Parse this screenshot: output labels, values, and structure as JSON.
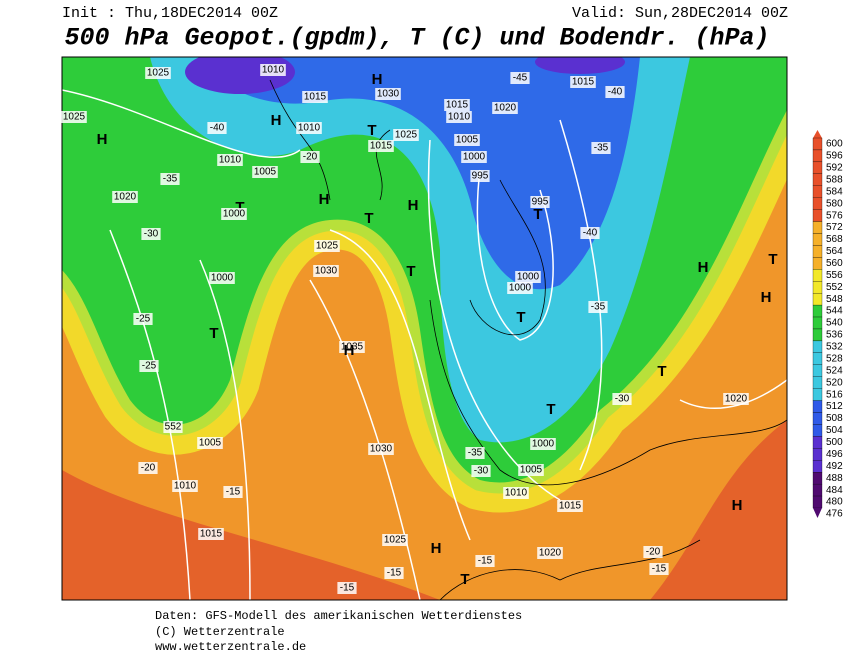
{
  "header": {
    "init": "Init : Thu,18DEC2014 00Z",
    "valid": "Valid: Sun,28DEC2014 00Z",
    "title": "500 hPa Geopot.(gpdm), T (C) und Bodendr. (hPa)"
  },
  "legend": {
    "labels": [
      600,
      596,
      592,
      588,
      584,
      580,
      576,
      572,
      568,
      564,
      560,
      556,
      552,
      548,
      544,
      540,
      536,
      532,
      528,
      524,
      520,
      516,
      512,
      508,
      504,
      500,
      496,
      492,
      488,
      484,
      480,
      476
    ]
  },
  "map": {
    "labels": [
      "1025",
      "1010",
      "1015",
      "1030",
      "H",
      "1015",
      "1010",
      "1020",
      "1015",
      "-45",
      "-40",
      "1025",
      "H",
      "-40",
      "H",
      "1010",
      "T",
      "1015",
      "1025",
      "1005",
      "1000",
      "-35",
      "1010",
      "1005",
      "-35",
      "-20",
      "995",
      "1020",
      "T",
      "1000",
      "H",
      "T",
      "H",
      "995",
      "T",
      "-30",
      "1025",
      "1030",
      "-40",
      "1000",
      "T",
      "1000",
      "1000",
      "H",
      "T",
      "H",
      "-25",
      "T",
      "T",
      "-35",
      "1035",
      "H",
      "-25",
      "T",
      "-30",
      "1020",
      "552",
      "1005",
      "T",
      "1000",
      "1030",
      "-35",
      "-20",
      "-30",
      "1005",
      "1010",
      "-15",
      "1010",
      "1015",
      "H",
      "1015",
      "1025",
      "H",
      "1020",
      "-20",
      "-15",
      "-15",
      "-15",
      "T",
      "-15"
    ]
  },
  "footer": {
    "lines": [
      "Daten: GFS-Modell des amerikanischen Wetterdienstes",
      "(C) Wetterzentrale",
      "www.wetterzentrale.de"
    ]
  }
}
